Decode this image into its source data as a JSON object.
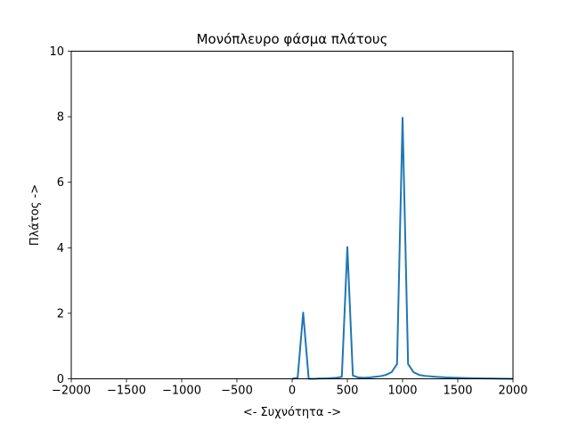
{
  "chart_data": {
    "type": "line",
    "title": "Μονόπλευρο φάσμα πλάτους",
    "xlabel": "<- Συχνότητα ->",
    "ylabel": "Πλάτος ->",
    "xlim": [
      -2000,
      2000
    ],
    "ylim": [
      0,
      10
    ],
    "xticks": [
      -2000,
      -1500,
      -1000,
      -500,
      0,
      500,
      1000,
      1500,
      2000
    ],
    "xtick_labels": [
      "−2000",
      "−1500",
      "−1000",
      "−500",
      "0",
      "500",
      "1000",
      "1500",
      "2000"
    ],
    "yticks": [
      0,
      2,
      4,
      6,
      8,
      10
    ],
    "ytick_labels": [
      "0",
      "2",
      "4",
      "6",
      "8",
      "10"
    ],
    "grid": false,
    "series": [
      {
        "color": "#1f77b4",
        "x": [
          0,
          50,
          100,
          150,
          200,
          250,
          300,
          350,
          400,
          450,
          500,
          550,
          600,
          650,
          700,
          750,
          800,
          850,
          900,
          950,
          1000,
          1050,
          1100,
          1150,
          1200,
          1300,
          1400,
          1500,
          1600,
          1700,
          1800,
          1900,
          2000
        ],
        "y": [
          0.0,
          0.03,
          2.02,
          0.0,
          0.0,
          0.01,
          0.01,
          0.02,
          0.03,
          0.06,
          4.02,
          0.1,
          0.04,
          0.03,
          0.04,
          0.06,
          0.08,
          0.12,
          0.2,
          0.45,
          7.97,
          0.45,
          0.2,
          0.12,
          0.09,
          0.06,
          0.04,
          0.03,
          0.02,
          0.015,
          0.01,
          0.005,
          0.0
        ]
      }
    ]
  }
}
